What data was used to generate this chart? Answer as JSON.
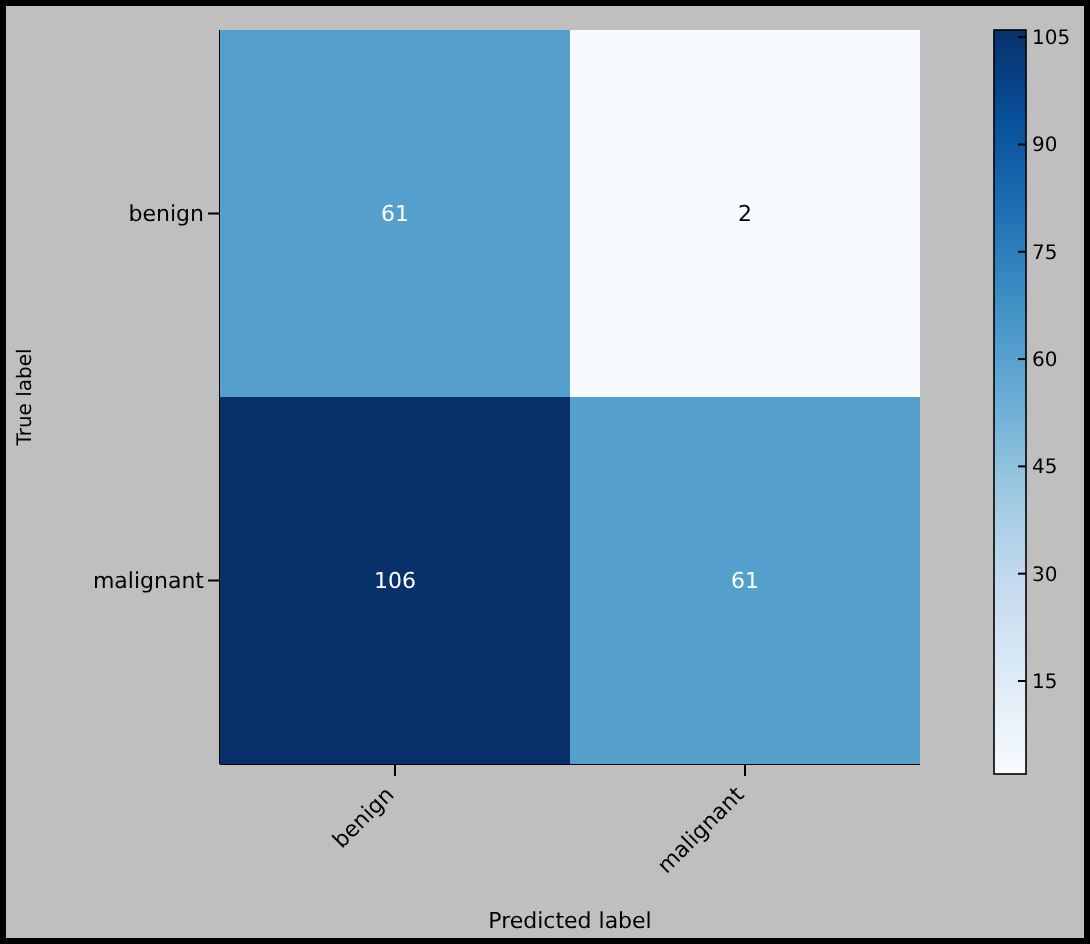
{
  "chart_data": {
    "type": "heatmap",
    "xlabel": "Predicted label",
    "ylabel": "True label",
    "categories": [
      "benign",
      "malignant"
    ],
    "y_categories": [
      "benign",
      "malignant"
    ],
    "cells": [
      [
        61,
        2
      ],
      [
        106,
        61
      ]
    ],
    "data_labels": true,
    "clim": [
      2,
      106
    ],
    "cticks": [
      15,
      30,
      45,
      60,
      75,
      90,
      105
    ]
  }
}
